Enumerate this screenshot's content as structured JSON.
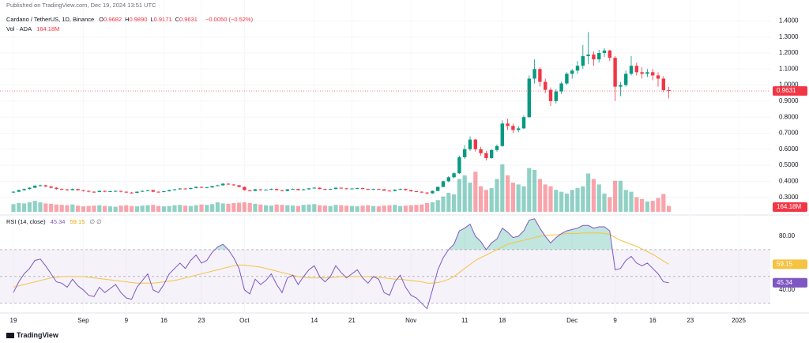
{
  "header": {
    "published": "Published on TradingView.com, Dec 19, 2024 13:51 UTC",
    "symbol": "Cardano / TetherUS, 1D, Binance",
    "ohlc_legend": [
      {
        "key": "O",
        "value": "0.9682"
      },
      {
        "key": "H",
        "value": "0.9890"
      },
      {
        "key": "L",
        "value": "0.9171"
      },
      {
        "key": "C",
        "value": "0.9631"
      }
    ],
    "change": "−0.0050 (−0.52%)",
    "vol_title": "Vol · ADA"
  },
  "chart_data": {
    "type": "candlestick",
    "up_color": "#089981",
    "down_color": "#f23645",
    "ylim": [
      0.2,
      1.53
    ],
    "yticks": [
      {
        "value": 0.3,
        "label": "0.3000"
      },
      {
        "value": 0.4,
        "label": "0.4000"
      },
      {
        "value": 0.5,
        "label": "0.5000"
      },
      {
        "value": 0.6,
        "label": "0.6000"
      },
      {
        "value": 0.7,
        "label": "0.7000"
      },
      {
        "value": 0.8,
        "label": "0.8000"
      },
      {
        "value": 0.9,
        "label": "0.9000"
      },
      {
        "value": 1.0,
        "label": "1.0000"
      },
      {
        "value": 1.1,
        "label": "1.1000"
      },
      {
        "value": 1.2,
        "label": "1.2000"
      },
      {
        "value": 1.3,
        "label": "1.3000"
      },
      {
        "value": 1.4,
        "label": "1.4000"
      }
    ],
    "xticks": [
      {
        "value": "2024-08-19",
        "label": "19"
      },
      {
        "value": "2024-09-01",
        "label": "Sep"
      },
      {
        "value": "2024-09-09",
        "label": "9"
      },
      {
        "value": "2024-09-16",
        "label": "16"
      },
      {
        "value": "2024-09-23",
        "label": "23"
      },
      {
        "value": "2024-10-01",
        "label": "Oct"
      },
      {
        "value": "2024-10-14",
        "label": "14"
      },
      {
        "value": "2024-10-21",
        "label": "21"
      },
      {
        "value": "2024-11-01",
        "label": "Nov"
      },
      {
        "value": "2024-11-11",
        "label": "11"
      },
      {
        "value": "2024-11-18",
        "label": "18"
      },
      {
        "value": "2024-12-01",
        "label": "Dec"
      },
      {
        "value": "2024-12-09",
        "label": "9"
      },
      {
        "value": "2024-12-16",
        "label": "16"
      },
      {
        "value": "2024-12-23",
        "label": "23"
      },
      {
        "value": "2025-01-01",
        "label": "2025"
      }
    ],
    "ohlc": [
      [
        0.33,
        0.338,
        0.326,
        0.335
      ],
      [
        0.335,
        0.348,
        0.332,
        0.345
      ],
      [
        0.345,
        0.355,
        0.342,
        0.352
      ],
      [
        0.352,
        0.364,
        0.349,
        0.36
      ],
      [
        0.36,
        0.376,
        0.357,
        0.372
      ],
      [
        0.372,
        0.38,
        0.368,
        0.375
      ],
      [
        0.375,
        0.378,
        0.364,
        0.368
      ],
      [
        0.368,
        0.371,
        0.356,
        0.36
      ],
      [
        0.36,
        0.363,
        0.348,
        0.352
      ],
      [
        0.352,
        0.356,
        0.346,
        0.35
      ],
      [
        0.35,
        0.353,
        0.341,
        0.345
      ],
      [
        0.345,
        0.356,
        0.343,
        0.352
      ],
      [
        0.352,
        0.354,
        0.342,
        0.345
      ],
      [
        0.345,
        0.347,
        0.336,
        0.34
      ],
      [
        0.34,
        0.343,
        0.331,
        0.335
      ],
      [
        0.335,
        0.338,
        0.328,
        0.333
      ],
      [
        0.333,
        0.344,
        0.331,
        0.34
      ],
      [
        0.34,
        0.342,
        0.332,
        0.335
      ],
      [
        0.335,
        0.341,
        0.333,
        0.338
      ],
      [
        0.338,
        0.344,
        0.335,
        0.34
      ],
      [
        0.34,
        0.342,
        0.331,
        0.335
      ],
      [
        0.335,
        0.337,
        0.326,
        0.33
      ],
      [
        0.33,
        0.333,
        0.324,
        0.328
      ],
      [
        0.328,
        0.338,
        0.326,
        0.335
      ],
      [
        0.335,
        0.343,
        0.333,
        0.34
      ],
      [
        0.34,
        0.348,
        0.338,
        0.345
      ],
      [
        0.345,
        0.347,
        0.332,
        0.335
      ],
      [
        0.335,
        0.337,
        0.33,
        0.333
      ],
      [
        0.333,
        0.341,
        0.331,
        0.338
      ],
      [
        0.338,
        0.348,
        0.336,
        0.345
      ],
      [
        0.345,
        0.353,
        0.343,
        0.35
      ],
      [
        0.35,
        0.358,
        0.348,
        0.355
      ],
      [
        0.355,
        0.357,
        0.349,
        0.352
      ],
      [
        0.352,
        0.361,
        0.35,
        0.358
      ],
      [
        0.358,
        0.368,
        0.356,
        0.365
      ],
      [
        0.365,
        0.367,
        0.357,
        0.36
      ],
      [
        0.36,
        0.365,
        0.358,
        0.362
      ],
      [
        0.362,
        0.373,
        0.36,
        0.37
      ],
      [
        0.37,
        0.378,
        0.368,
        0.375
      ],
      [
        0.375,
        0.39,
        0.373,
        0.385
      ],
      [
        0.385,
        0.388,
        0.377,
        0.38
      ],
      [
        0.38,
        0.382,
        0.372,
        0.375
      ],
      [
        0.375,
        0.377,
        0.362,
        0.365
      ],
      [
        0.365,
        0.367,
        0.342,
        0.345
      ],
      [
        0.345,
        0.348,
        0.336,
        0.34
      ],
      [
        0.34,
        0.353,
        0.338,
        0.35
      ],
      [
        0.35,
        0.352,
        0.342,
        0.345
      ],
      [
        0.345,
        0.35,
        0.343,
        0.348
      ],
      [
        0.348,
        0.355,
        0.346,
        0.352
      ],
      [
        0.352,
        0.354,
        0.343,
        0.345
      ],
      [
        0.345,
        0.347,
        0.337,
        0.34
      ],
      [
        0.34,
        0.352,
        0.338,
        0.35
      ],
      [
        0.35,
        0.355,
        0.348,
        0.352
      ],
      [
        0.352,
        0.354,
        0.343,
        0.345
      ],
      [
        0.345,
        0.352,
        0.343,
        0.35
      ],
      [
        0.35,
        0.358,
        0.348,
        0.356
      ],
      [
        0.356,
        0.363,
        0.354,
        0.36
      ],
      [
        0.36,
        0.362,
        0.35,
        0.352
      ],
      [
        0.352,
        0.354,
        0.345,
        0.348
      ],
      [
        0.348,
        0.354,
        0.346,
        0.352
      ],
      [
        0.352,
        0.362,
        0.35,
        0.36
      ],
      [
        0.36,
        0.362,
        0.353,
        0.356
      ],
      [
        0.356,
        0.358,
        0.35,
        0.352
      ],
      [
        0.352,
        0.357,
        0.35,
        0.355
      ],
      [
        0.355,
        0.36,
        0.353,
        0.358
      ],
      [
        0.358,
        0.36,
        0.35,
        0.352
      ],
      [
        0.352,
        0.354,
        0.346,
        0.348
      ],
      [
        0.348,
        0.354,
        0.346,
        0.352
      ],
      [
        0.352,
        0.354,
        0.348,
        0.35
      ],
      [
        0.35,
        0.352,
        0.34,
        0.342
      ],
      [
        0.342,
        0.344,
        0.337,
        0.34
      ],
      [
        0.34,
        0.35,
        0.338,
        0.348
      ],
      [
        0.348,
        0.355,
        0.346,
        0.352
      ],
      [
        0.352,
        0.354,
        0.343,
        0.345
      ],
      [
        0.345,
        0.347,
        0.335,
        0.338
      ],
      [
        0.338,
        0.34,
        0.332,
        0.335
      ],
      [
        0.335,
        0.337,
        0.327,
        0.33
      ],
      [
        0.33,
        0.332,
        0.318,
        0.325
      ],
      [
        0.325,
        0.343,
        0.322,
        0.34
      ],
      [
        0.34,
        0.368,
        0.338,
        0.365
      ],
      [
        0.365,
        0.405,
        0.362,
        0.4
      ],
      [
        0.4,
        0.432,
        0.395,
        0.425
      ],
      [
        0.425,
        0.455,
        0.418,
        0.45
      ],
      [
        0.45,
        0.56,
        0.445,
        0.55
      ],
      [
        0.55,
        0.625,
        0.54,
        0.6
      ],
      [
        0.6,
        0.68,
        0.59,
        0.66
      ],
      [
        0.66,
        0.665,
        0.585,
        0.6
      ],
      [
        0.6,
        0.615,
        0.56,
        0.575
      ],
      [
        0.575,
        0.59,
        0.53,
        0.545
      ],
      [
        0.545,
        0.6,
        0.54,
        0.595
      ],
      [
        0.595,
        0.63,
        0.585,
        0.62
      ],
      [
        0.62,
        0.78,
        0.615,
        0.76
      ],
      [
        0.76,
        0.79,
        0.72,
        0.745
      ],
      [
        0.745,
        0.76,
        0.7,
        0.72
      ],
      [
        0.72,
        0.745,
        0.705,
        0.73
      ],
      [
        0.73,
        0.81,
        0.725,
        0.8
      ],
      [
        0.8,
        1.06,
        0.795,
        1.04
      ],
      [
        1.04,
        1.16,
        1.01,
        1.1
      ],
      [
        1.1,
        1.11,
        0.99,
        1.02
      ],
      [
        1.02,
        1.04,
        0.95,
        0.97
      ],
      [
        0.97,
        0.985,
        0.87,
        0.9
      ],
      [
        0.9,
        0.975,
        0.885,
        0.96
      ],
      [
        0.96,
        1.02,
        0.945,
        1.01
      ],
      [
        1.01,
        1.08,
        1.0,
        1.07
      ],
      [
        1.07,
        1.1,
        1.04,
        1.09
      ],
      [
        1.09,
        1.15,
        1.07,
        1.12
      ],
      [
        1.12,
        1.25,
        1.1,
        1.18
      ],
      [
        1.18,
        1.33,
        1.13,
        1.19
      ],
      [
        1.19,
        1.21,
        1.12,
        1.16
      ],
      [
        1.16,
        1.22,
        1.14,
        1.2
      ],
      [
        1.2,
        1.23,
        1.175,
        1.215
      ],
      [
        1.215,
        1.22,
        1.15,
        1.17
      ],
      [
        1.17,
        1.18,
        0.9,
        0.99
      ],
      [
        0.99,
        1.02,
        0.93,
        1.0
      ],
      [
        1.0,
        1.09,
        0.99,
        1.07
      ],
      [
        1.07,
        1.18,
        1.06,
        1.12
      ],
      [
        1.12,
        1.14,
        1.06,
        1.08
      ],
      [
        1.08,
        1.11,
        1.04,
        1.07
      ],
      [
        1.07,
        1.1,
        1.05,
        1.08
      ],
      [
        1.08,
        1.1,
        1.03,
        1.06
      ],
      [
        1.06,
        1.08,
        0.99,
        1.04
      ],
      [
        1.04,
        1.055,
        0.955,
        0.9682
      ],
      [
        0.9682,
        0.989,
        0.9171,
        0.9631
      ]
    ],
    "volume": [
      210,
      240,
      230,
      260,
      300,
      260,
      230,
      220,
      200,
      190,
      180,
      200,
      170,
      150,
      160,
      170,
      180,
      160,
      150,
      140,
      170,
      180,
      160,
      150,
      170,
      180,
      190,
      160,
      150,
      160,
      180,
      190,
      170,
      160,
      180,
      200,
      190,
      210,
      260,
      230,
      220,
      240,
      250,
      260,
      240,
      220,
      200,
      180,
      170,
      200,
      190,
      180,
      170,
      160,
      190,
      200,
      210,
      180,
      170,
      160,
      190,
      180,
      170,
      160,
      150,
      170,
      180,
      160,
      150,
      170,
      180,
      190,
      160,
      170,
      180,
      190,
      200,
      240,
      260,
      320,
      420,
      520,
      480,
      900,
      1000,
      800,
      1100,
      700,
      600,
      650,
      900,
      1300,
      1000,
      800,
      750,
      700,
      1200,
      1150,
      900,
      750,
      700,
      600,
      550,
      500,
      600,
      650,
      700,
      1050,
      900,
      750,
      500,
      400,
      850,
      850,
      600,
      550,
      400,
      350,
      280,
      300,
      380,
      490,
      164.18
    ],
    "volume_label": "164.18M",
    "rsi": {
      "title": "RSI (14, close)",
      "color": "#7e57c2",
      "ma_color": "#f5c342",
      "ylim": [
        24,
        93.5
      ],
      "yticks": [
        {
          "value": 80,
          "label": "80.00"
        },
        {
          "value": 40,
          "label": "40.00"
        }
      ],
      "bands": [
        30,
        50,
        70
      ],
      "value_label": "45.34",
      "ma_label": "59.15",
      "extra": "∅ ∅",
      "values": [
        38,
        46,
        52,
        56,
        62,
        63,
        58,
        52,
        46,
        45,
        42,
        48,
        43,
        40,
        36,
        35,
        42,
        38,
        41,
        44,
        38,
        34,
        33,
        42,
        47,
        52,
        40,
        38,
        44,
        52,
        56,
        60,
        56,
        62,
        66,
        60,
        62,
        68,
        72,
        74,
        70,
        64,
        56,
        40,
        37,
        48,
        44,
        47,
        52,
        44,
        38,
        49,
        51,
        44,
        50,
        55,
        58,
        50,
        46,
        50,
        58,
        53,
        49,
        52,
        55,
        49,
        45,
        50,
        48,
        38,
        36,
        46,
        51,
        42,
        36,
        34,
        30,
        26,
        40,
        55,
        64,
        70,
        74,
        84,
        86,
        89,
        80,
        76,
        70,
        75,
        78,
        86,
        83,
        79,
        80,
        84,
        92,
        93,
        86,
        80,
        75,
        79,
        82,
        84,
        85,
        86,
        88,
        88,
        86,
        87,
        87,
        84,
        55,
        56,
        62,
        65,
        60,
        58,
        60,
        56,
        52,
        46,
        45.34
      ],
      "ma": [
        42,
        43,
        44,
        45,
        46,
        47,
        48,
        49,
        49.5,
        50,
        50,
        50,
        50,
        50,
        49.5,
        49,
        48.5,
        48,
        47.5,
        47,
        46.5,
        46,
        45.5,
        45,
        45,
        45,
        45,
        45.5,
        46,
        46.5,
        47,
        48,
        49,
        50,
        51,
        52,
        53,
        54,
        55,
        56,
        57,
        58,
        58.5,
        58.5,
        58,
        57.5,
        57,
        56,
        55,
        54,
        53,
        52,
        51,
        50,
        49.5,
        49,
        49,
        49,
        49,
        49,
        49.5,
        50,
        50,
        50,
        50,
        50,
        50,
        49.5,
        49.5,
        49,
        48.5,
        48,
        48,
        47.5,
        47,
        46.5,
        46,
        45,
        45,
        45.5,
        46.5,
        48,
        50,
        53,
        56,
        59,
        62,
        64,
        66,
        68,
        70,
        72,
        74,
        75,
        76,
        77,
        78,
        79,
        80,
        80.5,
        81,
        81,
        81.5,
        82,
        82,
        82,
        82.5,
        82.5,
        82.5,
        82.5,
        82,
        81.5,
        79,
        77,
        75.5,
        74,
        72.5,
        70.5,
        68.5,
        66.5,
        64,
        61.5,
        59.15
      ]
    }
  },
  "footer": {
    "brand": "TradingView"
  }
}
